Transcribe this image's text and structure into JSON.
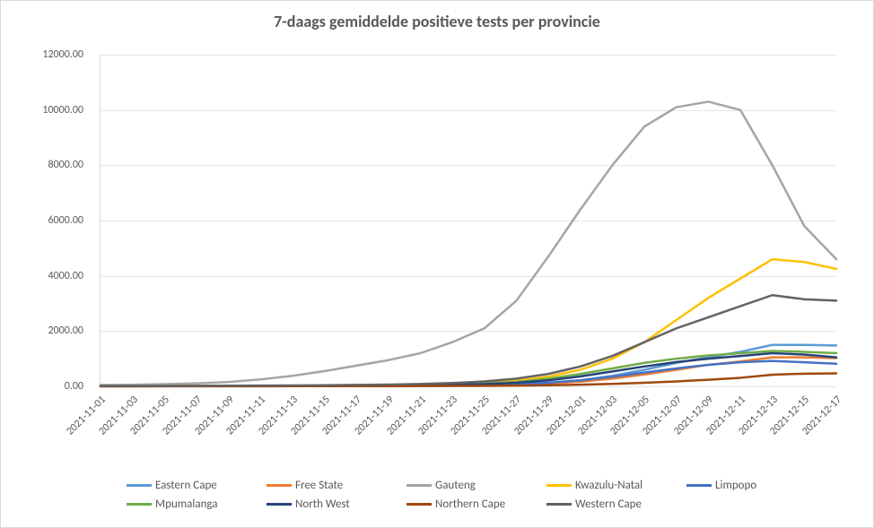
{
  "chart": {
    "type": "line",
    "title": "7-daags gemiddelde positieve tests per provincie",
    "title_fontsize": 18,
    "title_color": "#595959",
    "background_color": "#ffffff",
    "border_color": "#d9d9d9",
    "grid_color": "#e6e6e6",
    "axis_font_color": "#595959",
    "axis_fontsize": 12,
    "legend_fontsize": 13,
    "line_width": 2.5,
    "ylim": [
      0,
      12000
    ],
    "ytick_step": 2000,
    "y_tick_labels": [
      "0.00",
      "2000.00",
      "4000.00",
      "6000.00",
      "8000.00",
      "10000.00",
      "12000.00"
    ],
    "x_categories": [
      "2021-11-01",
      "2021-11-03",
      "2021-11-05",
      "2021-11-07",
      "2021-11-09",
      "2021-11-11",
      "2021-11-13",
      "2021-11-15",
      "2021-11-17",
      "2021-11-19",
      "2021-11-21",
      "2021-11-23",
      "2021-11-25",
      "2021-11-27",
      "2021-11-29",
      "2021-12-01",
      "2021-12-03",
      "2021-12-05",
      "2021-12-07",
      "2021-12-09",
      "2021-12-11",
      "2021-12-13",
      "2021-12-15",
      "2021-12-17"
    ],
    "series": [
      {
        "name": "Eastern Cape",
        "color": "#5b9bd5",
        "values": [
          10,
          10,
          10,
          10,
          12,
          15,
          18,
          20,
          22,
          25,
          30,
          40,
          55,
          80,
          130,
          220,
          380,
          600,
          850,
          1050,
          1250,
          1500,
          1500,
          1480
        ]
      },
      {
        "name": "Free State",
        "color": "#ed7d31",
        "values": [
          10,
          10,
          12,
          12,
          14,
          15,
          16,
          18,
          20,
          22,
          25,
          30,
          40,
          60,
          100,
          170,
          280,
          430,
          600,
          780,
          900,
          1050,
          1050,
          1020
        ]
      },
      {
        "name": "Gauteng",
        "color": "#a5a5a5",
        "values": [
          50,
          60,
          80,
          110,
          160,
          250,
          380,
          550,
          750,
          950,
          1200,
          1600,
          2100,
          3100,
          4700,
          6400,
          8000,
          9400,
          10100,
          10300,
          10000,
          8000,
          5800,
          4600
        ]
      },
      {
        "name": "Kwazulu-Natal",
        "color": "#ffc000",
        "values": [
          10,
          10,
          10,
          12,
          14,
          16,
          20,
          25,
          30,
          40,
          55,
          80,
          120,
          200,
          350,
          600,
          1000,
          1600,
          2400,
          3200,
          3900,
          4600,
          4500,
          4250
        ]
      },
      {
        "name": "Limpopo",
        "color": "#4472c4",
        "values": [
          5,
          5,
          6,
          7,
          8,
          10,
          12,
          14,
          17,
          20,
          25,
          35,
          50,
          80,
          130,
          220,
          350,
          500,
          650,
          780,
          870,
          920,
          870,
          820
        ]
      },
      {
        "name": "Mpumalanga",
        "color": "#70ad47",
        "values": [
          8,
          8,
          10,
          12,
          14,
          16,
          20,
          24,
          30,
          38,
          50,
          70,
          100,
          160,
          280,
          450,
          650,
          850,
          1000,
          1120,
          1200,
          1280,
          1250,
          1200
        ]
      },
      {
        "name": "North West",
        "color": "#264478",
        "values": [
          6,
          6,
          8,
          10,
          12,
          14,
          17,
          20,
          24,
          30,
          40,
          55,
          80,
          130,
          220,
          360,
          540,
          720,
          880,
          1000,
          1100,
          1200,
          1150,
          1050
        ]
      },
      {
        "name": "Northern Cape",
        "color": "#9e480e",
        "values": [
          2,
          2,
          3,
          3,
          4,
          5,
          6,
          7,
          8,
          10,
          12,
          15,
          20,
          28,
          40,
          60,
          90,
          130,
          180,
          240,
          310,
          420,
          460,
          470
        ]
      },
      {
        "name": "Western Cape",
        "color": "#636363",
        "values": [
          15,
          15,
          18,
          20,
          24,
          28,
          34,
          42,
          52,
          65,
          85,
          120,
          180,
          280,
          450,
          720,
          1100,
          1600,
          2100,
          2500,
          2900,
          3300,
          3150,
          3100
        ]
      }
    ]
  }
}
